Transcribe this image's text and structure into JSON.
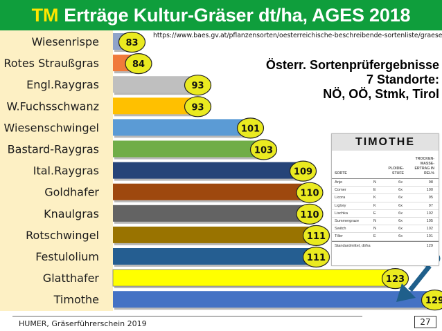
{
  "title": {
    "prefix": "TM",
    "main": "Erträge Kultur-Gräser dt/ha, AGES 2018"
  },
  "source_url": "https://www.baes.gv.at/pflanzensorten/oesterreichische-beschreibende-sortenliste/graeser/",
  "note": {
    "line1": "Österr. Sortenprüfergebnisse",
    "line2": "7 Standorte:",
    "line3": "NÖ, OÖ, Stmk, Tirol"
  },
  "chart_data": {
    "type": "bar",
    "orientation": "horizontal",
    "title": "Erträge Kultur-Gräser dt/ha, AGES 2018",
    "categories": [
      "Wiesenrispe",
      "Rotes Straußgras",
      "Engl.Raygras",
      "W.Fuchsschwanz",
      "Wiesenschwingel",
      "Bastard-Raygras",
      "Ital.Raygras",
      "Goldhafer",
      "Knaulgras",
      "Rotschwingel",
      "Festulolium",
      "Glatthafer",
      "Timothe"
    ],
    "values": [
      83,
      84,
      93,
      93,
      101,
      103,
      109,
      110,
      110,
      111,
      111,
      123,
      129
    ],
    "bar_colors": [
      "#8fa3c9",
      "#f07a3a",
      "#bfbfbf",
      "#ffc000",
      "#5b9bd5",
      "#70ad47",
      "#264478",
      "#9e480e",
      "#636363",
      "#997300",
      "#255e91",
      "#ffff00",
      "#4472c4"
    ],
    "xlim": [
      80,
      130
    ],
    "data_labels": true,
    "legend": "none",
    "grid": false
  },
  "table": {
    "title": "TIMOTHE",
    "headers": {
      "sorte": "SORTE",
      "ploidie": "PLOIDIE-STUFE",
      "ertrag": "TROCKEN-MASSE-ERTRAG IN REL%"
    },
    "rows": [
      {
        "sorte": "Anjo",
        "code": "N",
        "ploidie": "6x",
        "ertrag": "98"
      },
      {
        "sorte": "Comer",
        "code": "E",
        "ploidie": "6x",
        "ertrag": "100"
      },
      {
        "sorte": "Licora",
        "code": "K",
        "ploidie": "6x",
        "ertrag": "95"
      },
      {
        "sorte": "Liglory",
        "code": "K",
        "ploidie": "6x",
        "ertrag": "97"
      },
      {
        "sorte": "Lischka",
        "code": "E",
        "ploidie": "6x",
        "ertrag": "102"
      },
      {
        "sorte": "Summergraze",
        "code": "N",
        "ploidie": "6x",
        "ertrag": "105"
      },
      {
        "sorte": "Switch",
        "code": "N",
        "ploidie": "6x",
        "ertrag": "102"
      },
      {
        "sorte": "Tiller",
        "code": "E",
        "ploidie": "6x",
        "ertrag": "101"
      }
    ],
    "footer": {
      "label": "Standardmittel, dt/ha",
      "value": "129"
    }
  },
  "footer": {
    "text": "HUMER, Gräserführerschein 2019",
    "page": "27"
  },
  "colors": {
    "title_bg": "#0f9e3c",
    "title_prefix": "#ffe600",
    "label_bg": "#fdf0c4",
    "bubble": "#eaea20",
    "arrow": "#1f5f8b"
  }
}
